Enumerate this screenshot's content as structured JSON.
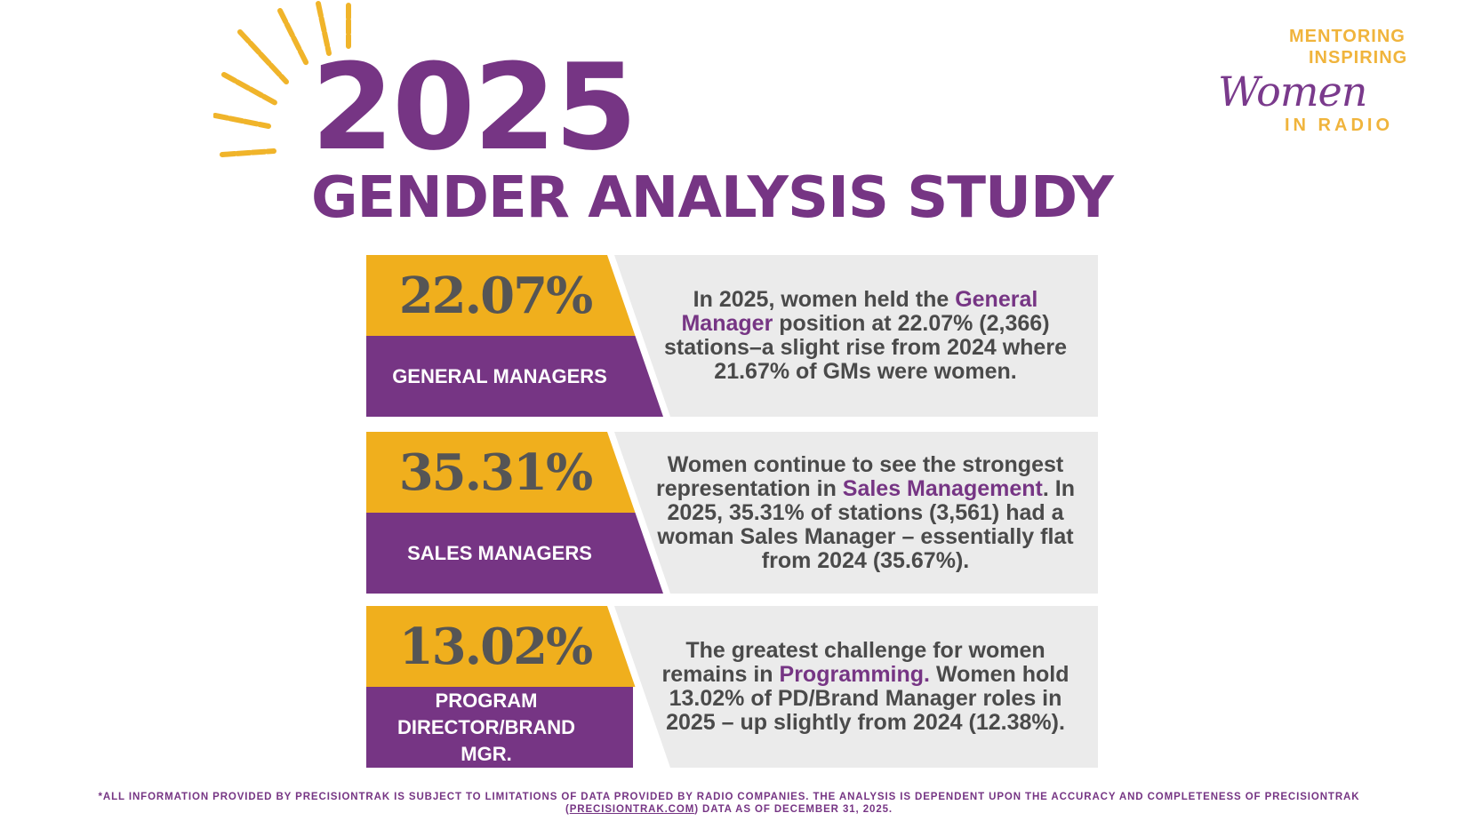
{
  "header": {
    "year": "2025",
    "title": "GENDER ANALYSIS STUDY"
  },
  "logo": {
    "line1": "MENTORING",
    "line2": "INSPIRING",
    "script": "Women",
    "line3": "IN RADIO"
  },
  "colors": {
    "purple": "#763584",
    "gold": "#f0af1d",
    "grey": "#ebebeb"
  },
  "cards": [
    {
      "percent": "22.07%",
      "label": "GENERAL MANAGERS",
      "desc_a": "In 2025, women held the ",
      "desc_hl": "General Manager",
      "desc_b": " position at 22.07% (2,366) stations–a slight rise from 2024 where 21.67% of GMs were women."
    },
    {
      "percent": "35.31%",
      "label": "SALES MANAGERS",
      "desc_a": "Women continue to see the strongest representation in ",
      "desc_hl": "Sales Management",
      "desc_b": ". In 2025, 35.31% of stations (3,561) had a woman Sales Manager – essentially flat from 2024 (35.67%)."
    },
    {
      "percent": "13.02%",
      "label": "PROGRAM DIRECTOR/BRAND MGR.",
      "desc_a": "The greatest challenge for women remains in ",
      "desc_hl": "Programming.",
      "desc_b": " Women hold 13.02% of PD/Brand Manager roles in 2025 – up slightly from 2024 (12.38%)."
    }
  ],
  "footer": {
    "text1": "*ALL INFORMATION PROVIDED BY PRECISIONTRAK IS SUBJECT TO LIMITATIONS OF DATA PROVIDED BY RADIO COMPANIES. THE ANALYSIS IS DEPENDENT UPON THE ACCURACY AND COMPLETENESS OF PRECISIONTRAK",
    "paren_open": "(",
    "link": "PRECISIONTRAK.COM",
    "text2": ") DATA AS OF DECEMBER 31, 2025."
  }
}
